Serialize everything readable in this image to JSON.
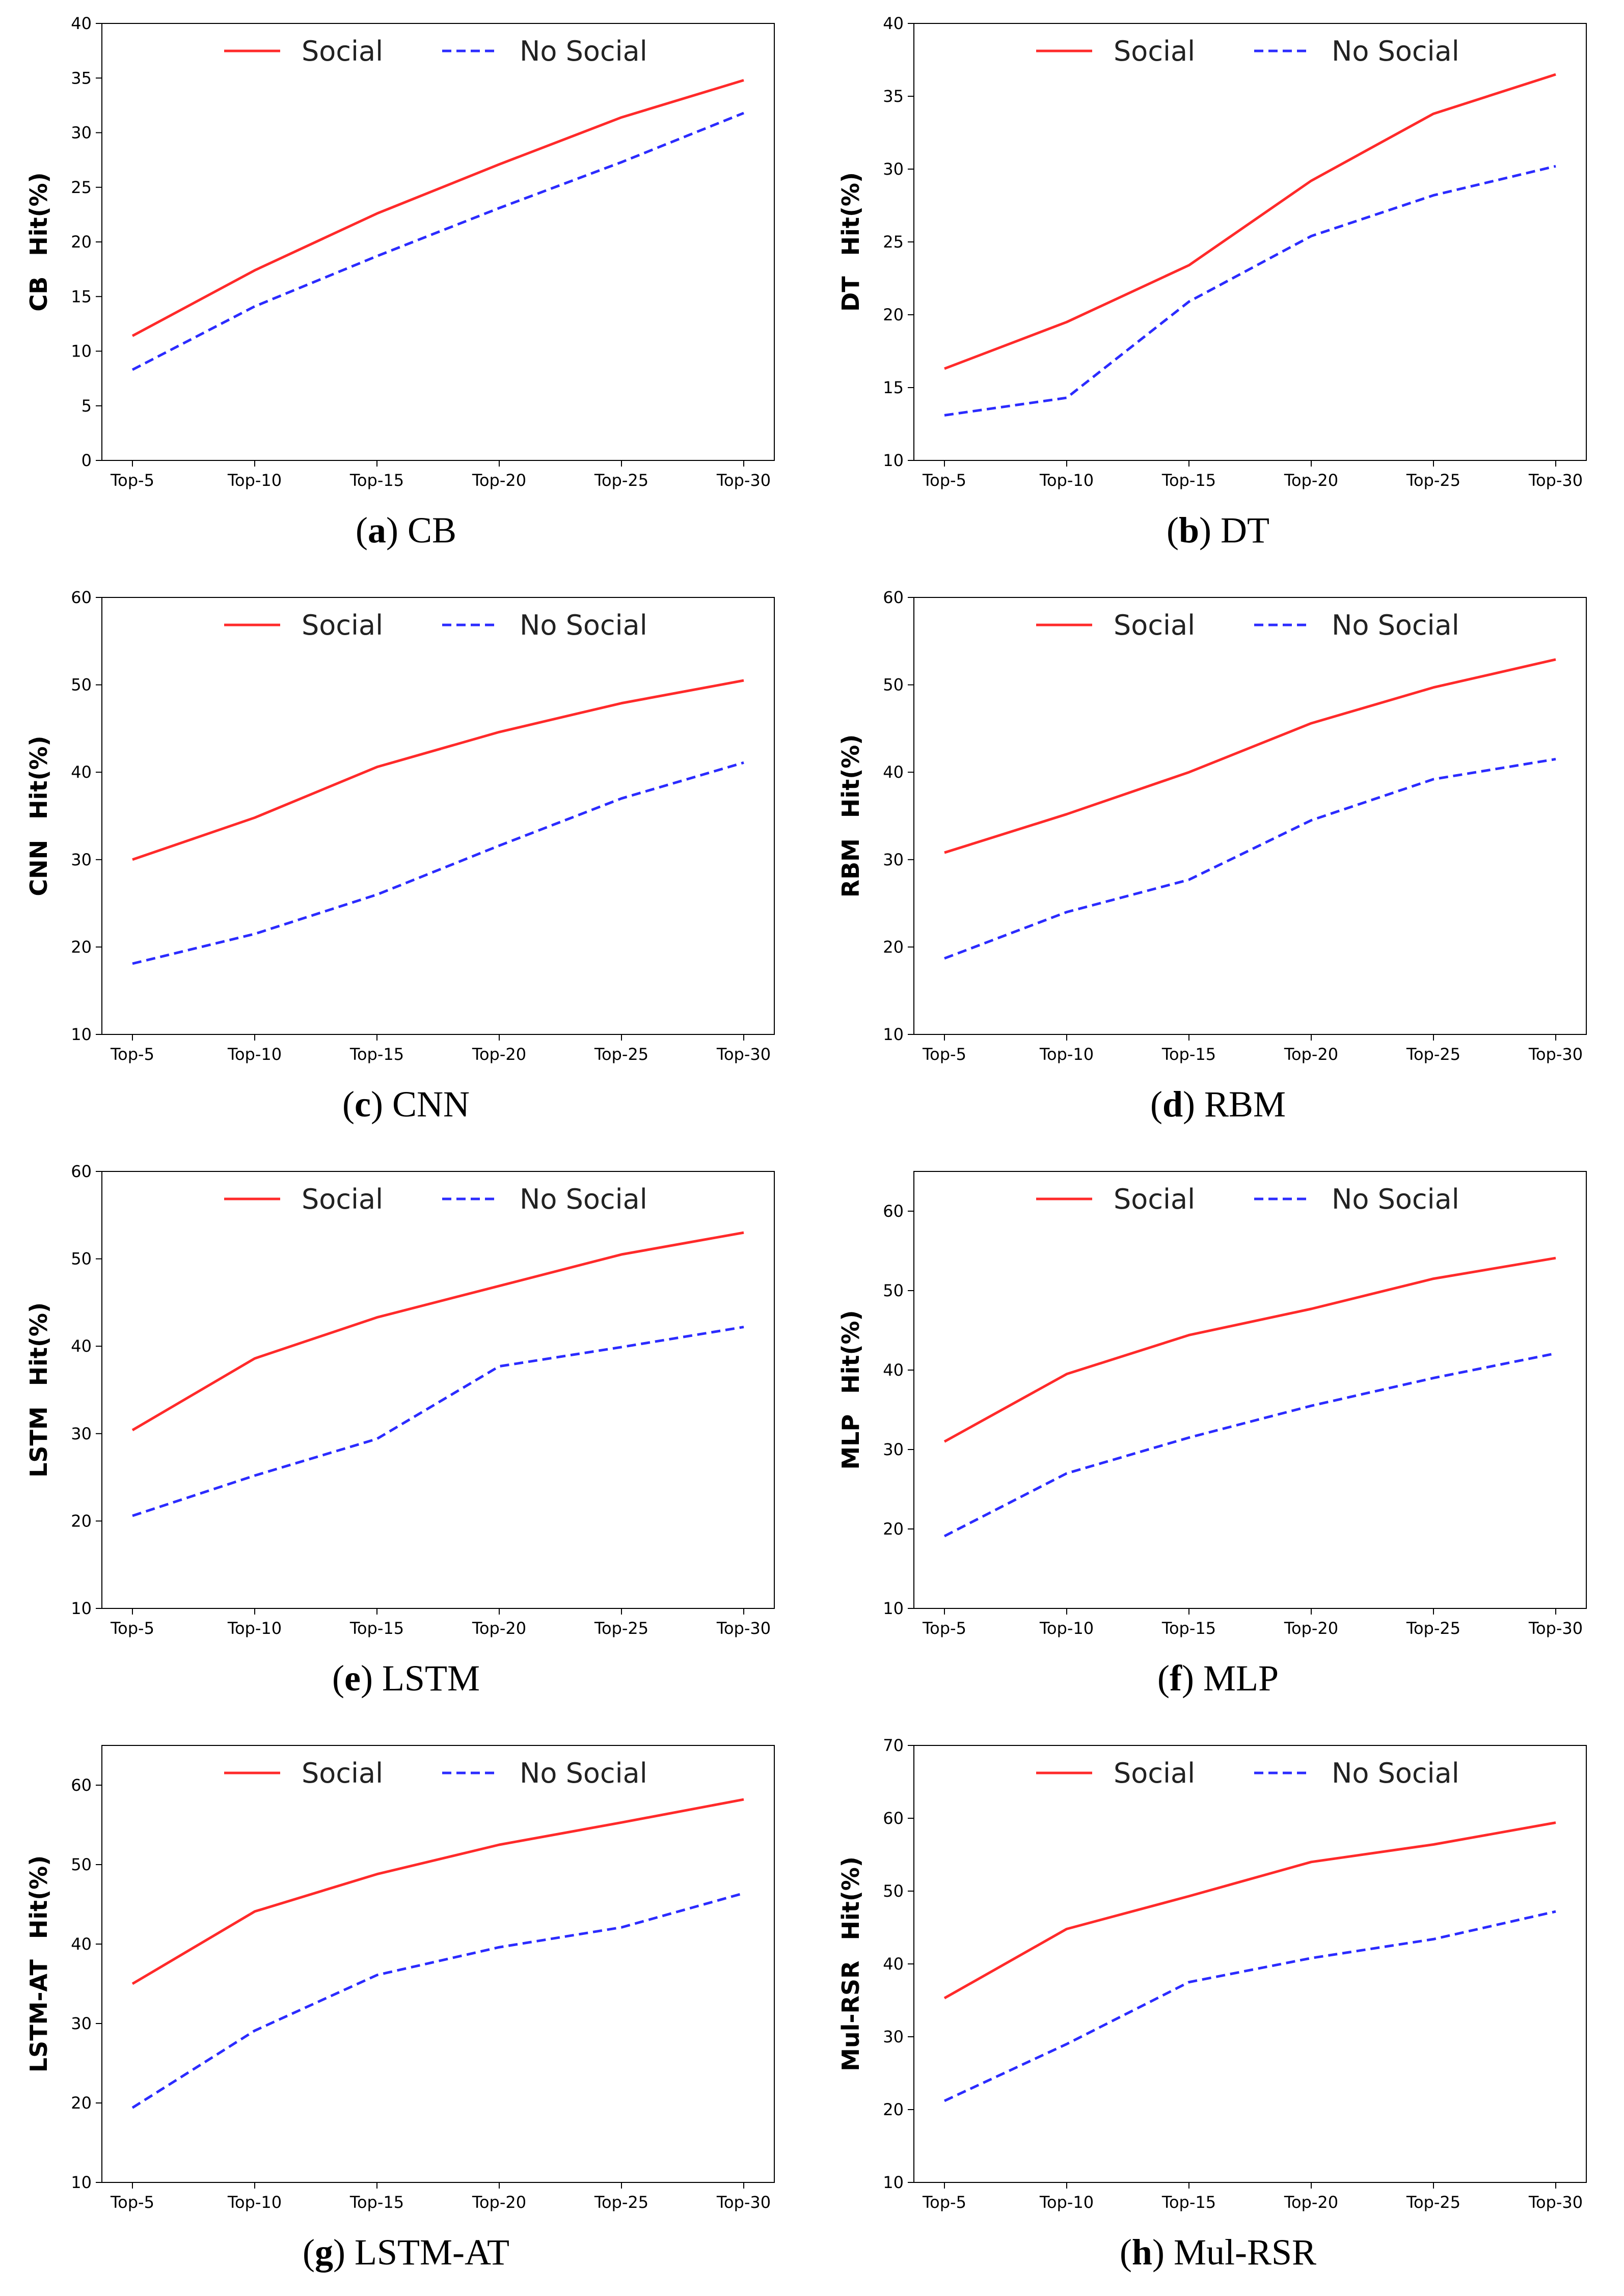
{
  "colors": {
    "social": "#ff2a2a",
    "no_social": "#2b2bff",
    "axis": "#000000"
  },
  "chart_data": [
    {
      "type": "line",
      "panel_letter": "a",
      "panel_name": "CB",
      "categories": [
        "Top-5",
        "Top-10",
        "Top-15",
        "Top-20",
        "Top-25",
        "Top-30"
      ],
      "ylabel_model": "CB",
      "ylabel_metric": "Hit(%)",
      "ylim": [
        0,
        40
      ],
      "yticks": [
        0,
        5,
        10,
        15,
        20,
        25,
        30,
        35,
        40
      ],
      "legend_position": "top-center",
      "series": [
        {
          "name": "Social",
          "style": "solid",
          "values": [
            11.4,
            17.4,
            22.6,
            27.1,
            31.4,
            34.8
          ]
        },
        {
          "name": "No Social",
          "style": "dashed",
          "values": [
            8.3,
            14.1,
            18.7,
            23.1,
            27.3,
            31.8
          ]
        }
      ]
    },
    {
      "type": "line",
      "panel_letter": "b",
      "panel_name": "DT",
      "categories": [
        "Top-5",
        "Top-10",
        "Top-15",
        "Top-20",
        "Top-25",
        "Top-30"
      ],
      "ylabel_model": "DT",
      "ylabel_metric": "Hit(%)",
      "ylim": [
        10,
        40
      ],
      "yticks": [
        10,
        15,
        20,
        25,
        30,
        35,
        40
      ],
      "legend_position": "top-center",
      "series": [
        {
          "name": "Social",
          "style": "solid",
          "values": [
            16.3,
            19.5,
            23.4,
            29.2,
            33.8,
            36.5
          ]
        },
        {
          "name": "No Social",
          "style": "dashed",
          "values": [
            13.1,
            14.3,
            20.9,
            25.4,
            28.2,
            30.2
          ]
        }
      ]
    },
    {
      "type": "line",
      "panel_letter": "c",
      "panel_name": "CNN",
      "categories": [
        "Top-5",
        "Top-10",
        "Top-15",
        "Top-20",
        "Top-25",
        "Top-30"
      ],
      "ylabel_model": "CNN",
      "ylabel_metric": "Hit(%)",
      "ylim": [
        10,
        60
      ],
      "yticks": [
        10,
        20,
        30,
        40,
        50,
        60
      ],
      "legend_position": "top-center",
      "series": [
        {
          "name": "Social",
          "style": "solid",
          "values": [
            30.0,
            34.8,
            40.6,
            44.6,
            47.9,
            50.5
          ]
        },
        {
          "name": "No Social",
          "style": "dashed",
          "values": [
            18.1,
            21.5,
            26.0,
            31.6,
            37.0,
            41.1
          ]
        }
      ]
    },
    {
      "type": "line",
      "panel_letter": "d",
      "panel_name": "RBM",
      "categories": [
        "Top-5",
        "Top-10",
        "Top-15",
        "Top-20",
        "Top-25",
        "Top-30"
      ],
      "ylabel_model": "RBM",
      "ylabel_metric": "Hit(%)",
      "ylim": [
        10,
        60
      ],
      "yticks": [
        10,
        20,
        30,
        40,
        50,
        60
      ],
      "legend_position": "top-center",
      "series": [
        {
          "name": "Social",
          "style": "solid",
          "values": [
            30.8,
            35.2,
            40.0,
            45.6,
            49.7,
            52.9
          ]
        },
        {
          "name": "No Social",
          "style": "dashed",
          "values": [
            18.7,
            24.0,
            27.7,
            34.5,
            39.2,
            41.5
          ]
        }
      ]
    },
    {
      "type": "line",
      "panel_letter": "e",
      "panel_name": "LSTM",
      "categories": [
        "Top-5",
        "Top-10",
        "Top-15",
        "Top-20",
        "Top-25",
        "Top-30"
      ],
      "ylabel_model": "LSTM",
      "ylabel_metric": "Hit(%)",
      "ylim": [
        10,
        60
      ],
      "yticks": [
        10,
        20,
        30,
        40,
        50,
        60
      ],
      "legend_position": "top-center",
      "series": [
        {
          "name": "Social",
          "style": "solid",
          "values": [
            30.4,
            38.6,
            43.3,
            46.9,
            50.5,
            53.0
          ]
        },
        {
          "name": "No Social",
          "style": "dashed",
          "values": [
            20.6,
            25.2,
            29.4,
            37.7,
            39.9,
            42.2
          ]
        }
      ]
    },
    {
      "type": "line",
      "panel_letter": "f",
      "panel_name": "MLP",
      "categories": [
        "Top-5",
        "Top-10",
        "Top-15",
        "Top-20",
        "Top-25",
        "Top-30"
      ],
      "ylabel_model": "MLP",
      "ylabel_metric": "Hit(%)",
      "ylim": [
        10,
        65
      ],
      "yticks": [
        10,
        20,
        30,
        40,
        50,
        60
      ],
      "legend_position": "top-center",
      "series": [
        {
          "name": "Social",
          "style": "solid",
          "values": [
            31.0,
            39.5,
            44.4,
            47.7,
            51.5,
            54.1
          ]
        },
        {
          "name": "No Social",
          "style": "dashed",
          "values": [
            19.1,
            27.0,
            31.5,
            35.5,
            39.0,
            42.1
          ]
        }
      ]
    },
    {
      "type": "line",
      "panel_letter": "g",
      "panel_name": "LSTM-AT",
      "categories": [
        "Top-5",
        "Top-10",
        "Top-15",
        "Top-20",
        "Top-25",
        "Top-30"
      ],
      "ylabel_model": "LSTM-AT",
      "ylabel_metric": "Hit(%)",
      "ylim": [
        10,
        65
      ],
      "yticks": [
        10,
        20,
        30,
        40,
        50,
        60
      ],
      "legend_position": "top-center",
      "series": [
        {
          "name": "Social",
          "style": "solid",
          "values": [
            35.0,
            44.1,
            48.8,
            52.5,
            55.3,
            58.2
          ]
        },
        {
          "name": "No Social",
          "style": "dashed",
          "values": [
            19.4,
            29.1,
            36.1,
            39.6,
            42.1,
            46.4
          ]
        }
      ]
    },
    {
      "type": "line",
      "panel_letter": "h",
      "panel_name": "Mul-RSR",
      "categories": [
        "Top-5",
        "Top-10",
        "Top-15",
        "Top-20",
        "Top-25",
        "Top-30"
      ],
      "ylabel_model": "Mul-RSR",
      "ylabel_metric": "Hit(%)",
      "ylim": [
        10,
        70
      ],
      "yticks": [
        10,
        20,
        30,
        40,
        50,
        60,
        70
      ],
      "legend_position": "top-center",
      "series": [
        {
          "name": "Social",
          "style": "solid",
          "values": [
            35.3,
            44.8,
            49.3,
            54.0,
            56.4,
            59.4
          ]
        },
        {
          "name": "No Social",
          "style": "dashed",
          "values": [
            21.2,
            29.0,
            37.5,
            40.8,
            43.4,
            47.2
          ]
        }
      ]
    }
  ]
}
